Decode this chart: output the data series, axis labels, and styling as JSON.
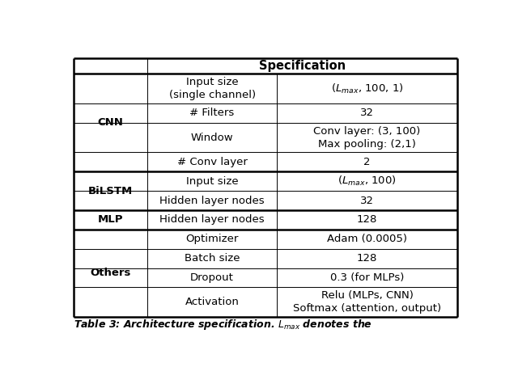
{
  "header": "Specification",
  "groups": [
    {
      "label": "CNN",
      "start": 0,
      "end": 3
    },
    {
      "label": "BiLSTM",
      "start": 4,
      "end": 5
    },
    {
      "label": "MLP",
      "start": 6,
      "end": 6
    },
    {
      "label": "Others",
      "start": 7,
      "end": 10
    }
  ],
  "rows": [
    {
      "param": "Input size\n(single channel)",
      "value": "($L_{max}$, 100, 1)",
      "value2": ""
    },
    {
      "param": "# Filters",
      "value": "32",
      "value2": ""
    },
    {
      "param": "Window",
      "value": "Conv layer: (3, 100)",
      "value2": "Max pooling: (2,1)"
    },
    {
      "param": "# Conv layer",
      "value": "2",
      "value2": ""
    },
    {
      "param": "Input size",
      "value": "($L_{max}$, 100)",
      "value2": ""
    },
    {
      "param": "Hidden layer nodes",
      "value": "32",
      "value2": ""
    },
    {
      "param": "Hidden layer nodes",
      "value": "128",
      "value2": ""
    },
    {
      "param": "Optimizer",
      "value": "Adam (0.0005)",
      "value2": ""
    },
    {
      "param": "Batch size",
      "value": "128",
      "value2": ""
    },
    {
      "param": "Dropout",
      "value": "0.3 (for MLPs)",
      "value2": ""
    },
    {
      "param": "Activation",
      "value": "Relu (MLPs, CNN)",
      "value2": "Softmax (attention, output)"
    }
  ],
  "caption": "Table 3: Architecture specification. $L_{max}$ denotes the",
  "thick_lw": 1.8,
  "thin_lw": 0.7,
  "fs_body": 9.5,
  "fs_bold": 9.5,
  "fs_header": 10.5,
  "fs_caption": 9.0
}
